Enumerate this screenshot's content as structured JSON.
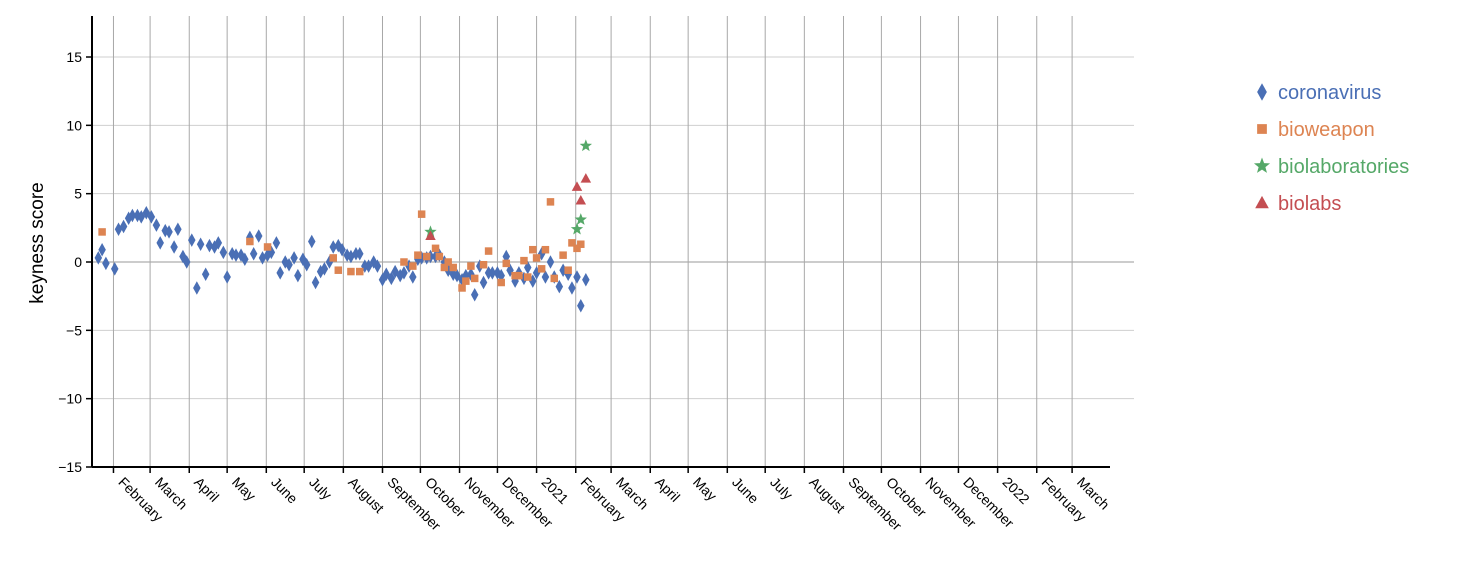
{
  "chart_data": {
    "type": "scatter",
    "ylabel": "keyness score",
    "ylim": [
      -15,
      18
    ],
    "yticks": [
      15,
      10,
      5,
      0,
      -5,
      -10,
      -15
    ],
    "grid": true,
    "legend_position": "right",
    "x_start": "2020-01-15",
    "x_end": "2022-03-31",
    "month_ticks": [
      {
        "date": "2020-02-01",
        "label": "February"
      },
      {
        "date": "2020-03-01",
        "label": "March"
      },
      {
        "date": "2020-04-01",
        "label": "April"
      },
      {
        "date": "2020-05-01",
        "label": "May"
      },
      {
        "date": "2020-06-01",
        "label": "June"
      },
      {
        "date": "2020-07-01",
        "label": "July"
      },
      {
        "date": "2020-08-01",
        "label": "August"
      },
      {
        "date": "2020-09-01",
        "label": "September"
      },
      {
        "date": "2020-10-01",
        "label": "October"
      },
      {
        "date": "2020-11-01",
        "label": "November"
      },
      {
        "date": "2020-12-01",
        "label": "December"
      },
      {
        "date": "2021-01-01",
        "label": "2021"
      },
      {
        "date": "2021-02-01",
        "label": "February"
      },
      {
        "date": "2021-03-01",
        "label": "March"
      },
      {
        "date": "2021-04-01",
        "label": "April"
      },
      {
        "date": "2021-05-01",
        "label": "May"
      },
      {
        "date": "2021-06-01",
        "label": "June"
      },
      {
        "date": "2021-07-01",
        "label": "July"
      },
      {
        "date": "2021-08-01",
        "label": "August"
      },
      {
        "date": "2021-09-01",
        "label": "September"
      },
      {
        "date": "2021-10-01",
        "label": "October"
      },
      {
        "date": "2021-11-01",
        "label": "November"
      },
      {
        "date": "2021-12-01",
        "label": "December"
      },
      {
        "date": "2022-01-01",
        "label": "2022"
      },
      {
        "date": "2022-02-01",
        "label": "February"
      },
      {
        "date": "2022-03-01",
        "label": "March"
      }
    ],
    "series": [
      {
        "name": "coronavirus",
        "color": "#4a6fb5",
        "marker": "diamond",
        "points": [
          [
            "2020-01-20",
            0.3
          ],
          [
            "2020-01-23",
            0.9
          ],
          [
            "2020-01-26",
            -0.1
          ],
          [
            "2020-02-02",
            -0.5
          ],
          [
            "2020-02-05",
            2.4
          ],
          [
            "2020-02-09",
            2.6
          ],
          [
            "2020-02-13",
            3.2
          ],
          [
            "2020-02-16",
            3.4
          ],
          [
            "2020-02-20",
            3.4
          ],
          [
            "2020-02-23",
            3.3
          ],
          [
            "2020-02-27",
            3.6
          ],
          [
            "2020-03-02",
            3.3
          ],
          [
            "2020-03-06",
            2.7
          ],
          [
            "2020-03-09",
            1.4
          ],
          [
            "2020-03-13",
            2.3
          ],
          [
            "2020-03-16",
            2.2
          ],
          [
            "2020-03-20",
            1.1
          ],
          [
            "2020-03-23",
            2.4
          ],
          [
            "2020-03-27",
            0.4
          ],
          [
            "2020-03-30",
            0.0
          ],
          [
            "2020-04-03",
            1.6
          ],
          [
            "2020-04-07",
            -1.9
          ],
          [
            "2020-04-10",
            1.3
          ],
          [
            "2020-04-14",
            -0.9
          ],
          [
            "2020-04-17",
            1.2
          ],
          [
            "2020-04-21",
            1.1
          ],
          [
            "2020-04-24",
            1.4
          ],
          [
            "2020-04-28",
            0.7
          ],
          [
            "2020-05-01",
            -1.1
          ],
          [
            "2020-05-05",
            0.6
          ],
          [
            "2020-05-08",
            0.5
          ],
          [
            "2020-05-12",
            0.5
          ],
          [
            "2020-05-15",
            0.2
          ],
          [
            "2020-05-19",
            1.8
          ],
          [
            "2020-05-22",
            0.6
          ],
          [
            "2020-05-26",
            1.9
          ],
          [
            "2020-05-29",
            0.3
          ],
          [
            "2020-06-02",
            0.5
          ],
          [
            "2020-06-05",
            0.7
          ],
          [
            "2020-06-09",
            1.4
          ],
          [
            "2020-06-12",
            -0.8
          ],
          [
            "2020-06-16",
            0.0
          ],
          [
            "2020-06-19",
            -0.2
          ],
          [
            "2020-06-23",
            0.3
          ],
          [
            "2020-06-26",
            -1.0
          ],
          [
            "2020-06-30",
            0.2
          ],
          [
            "2020-07-03",
            -0.2
          ],
          [
            "2020-07-07",
            1.5
          ],
          [
            "2020-07-10",
            -1.5
          ],
          [
            "2020-07-14",
            -0.7
          ],
          [
            "2020-07-17",
            -0.5
          ],
          [
            "2020-07-21",
            0.0
          ],
          [
            "2020-07-24",
            1.1
          ],
          [
            "2020-07-28",
            1.2
          ],
          [
            "2020-07-31",
            0.9
          ],
          [
            "2020-08-04",
            0.5
          ],
          [
            "2020-08-07",
            0.4
          ],
          [
            "2020-08-11",
            0.6
          ],
          [
            "2020-08-14",
            0.6
          ],
          [
            "2020-08-18",
            -0.3
          ],
          [
            "2020-08-21",
            -0.3
          ],
          [
            "2020-08-25",
            0.0
          ],
          [
            "2020-08-28",
            -0.3
          ],
          [
            "2020-09-01",
            -1.3
          ],
          [
            "2020-09-04",
            -0.9
          ],
          [
            "2020-09-08",
            -1.2
          ],
          [
            "2020-09-11",
            -0.7
          ],
          [
            "2020-09-15",
            -1.0
          ],
          [
            "2020-09-18",
            -0.8
          ],
          [
            "2020-09-22",
            -0.3
          ],
          [
            "2020-09-25",
            -1.1
          ],
          [
            "2020-09-29",
            0.2
          ],
          [
            "2020-10-02",
            0.3
          ],
          [
            "2020-10-06",
            0.3
          ],
          [
            "2020-10-09",
            0.4
          ],
          [
            "2020-10-13",
            0.4
          ],
          [
            "2020-10-16",
            0.5
          ],
          [
            "2020-10-20",
            0.0
          ],
          [
            "2020-10-23",
            -0.6
          ],
          [
            "2020-10-27",
            -0.9
          ],
          [
            "2020-10-30",
            -1.0
          ],
          [
            "2020-11-03",
            -1.3
          ],
          [
            "2020-11-06",
            -1.0
          ],
          [
            "2020-11-10",
            -0.9
          ],
          [
            "2020-11-13",
            -2.4
          ],
          [
            "2020-11-17",
            -0.3
          ],
          [
            "2020-11-20",
            -1.5
          ],
          [
            "2020-11-24",
            -0.8
          ],
          [
            "2020-11-27",
            -0.8
          ],
          [
            "2020-12-01",
            -0.8
          ],
          [
            "2020-12-04",
            -1.0
          ],
          [
            "2020-12-08",
            0.4
          ],
          [
            "2020-12-11",
            -0.6
          ],
          [
            "2020-12-15",
            -1.4
          ],
          [
            "2020-12-18",
            -0.8
          ],
          [
            "2020-12-22",
            -1.2
          ],
          [
            "2020-12-25",
            -0.4
          ],
          [
            "2020-12-29",
            -1.4
          ],
          [
            "2021-01-01",
            -0.8
          ],
          [
            "2021-01-05",
            0.6
          ],
          [
            "2021-01-08",
            -1.1
          ],
          [
            "2021-01-12",
            0.0
          ],
          [
            "2021-01-15",
            -1.1
          ],
          [
            "2021-01-19",
            -1.8
          ],
          [
            "2021-01-22",
            -0.6
          ],
          [
            "2021-01-26",
            -0.9
          ],
          [
            "2021-01-29",
            -1.9
          ],
          [
            "2021-02-02",
            -1.1
          ],
          [
            "2021-02-05",
            -3.2
          ],
          [
            "2021-02-09",
            -1.3
          ]
        ]
      },
      {
        "name": "bioweapon",
        "color": "#dd8452",
        "marker": "square",
        "points": [
          [
            "2020-01-23",
            2.2
          ],
          [
            "2020-05-19",
            1.5
          ],
          [
            "2020-06-02",
            1.1
          ],
          [
            "2020-07-24",
            0.3
          ],
          [
            "2020-07-28",
            -0.6
          ],
          [
            "2020-08-07",
            -0.7
          ],
          [
            "2020-08-14",
            -0.7
          ],
          [
            "2020-09-18",
            0.0
          ],
          [
            "2020-09-25",
            -0.3
          ],
          [
            "2020-09-29",
            0.5
          ],
          [
            "2020-10-02",
            3.5
          ],
          [
            "2020-10-06",
            0.4
          ],
          [
            "2020-10-13",
            1.0
          ],
          [
            "2020-10-16",
            0.4
          ],
          [
            "2020-10-20",
            -0.4
          ],
          [
            "2020-10-23",
            0.0
          ],
          [
            "2020-10-27",
            -0.4
          ],
          [
            "2020-11-03",
            -1.9
          ],
          [
            "2020-11-06",
            -1.4
          ],
          [
            "2020-11-10",
            -0.3
          ],
          [
            "2020-11-13",
            -1.2
          ],
          [
            "2020-11-20",
            -0.2
          ],
          [
            "2020-11-24",
            0.8
          ],
          [
            "2020-12-04",
            -1.5
          ],
          [
            "2020-12-08",
            -0.1
          ],
          [
            "2020-12-15",
            -1.0
          ],
          [
            "2020-12-18",
            -1.0
          ],
          [
            "2020-12-22",
            0.1
          ],
          [
            "2020-12-25",
            -1.1
          ],
          [
            "2020-12-29",
            0.9
          ],
          [
            "2021-01-01",
            0.3
          ],
          [
            "2021-01-05",
            -0.5
          ],
          [
            "2021-01-08",
            0.9
          ],
          [
            "2021-01-12",
            4.4
          ],
          [
            "2021-01-15",
            -1.2
          ],
          [
            "2021-01-22",
            0.5
          ],
          [
            "2021-01-26",
            -0.6
          ],
          [
            "2021-01-29",
            1.4
          ],
          [
            "2021-02-02",
            1.0
          ],
          [
            "2021-02-05",
            1.3
          ]
        ]
      },
      {
        "name": "biolaboratories",
        "color": "#55a868",
        "marker": "star",
        "points": [
          [
            "2020-10-09",
            2.2
          ],
          [
            "2021-02-02",
            2.4
          ],
          [
            "2021-02-05",
            3.1
          ],
          [
            "2021-02-09",
            8.5
          ]
        ]
      },
      {
        "name": "biolabs",
        "color": "#c44e52",
        "marker": "triangle",
        "points": [
          [
            "2020-10-09",
            1.9
          ],
          [
            "2021-02-02",
            5.5
          ],
          [
            "2021-02-05",
            4.5
          ],
          [
            "2021-02-09",
            6.1
          ]
        ]
      }
    ]
  }
}
